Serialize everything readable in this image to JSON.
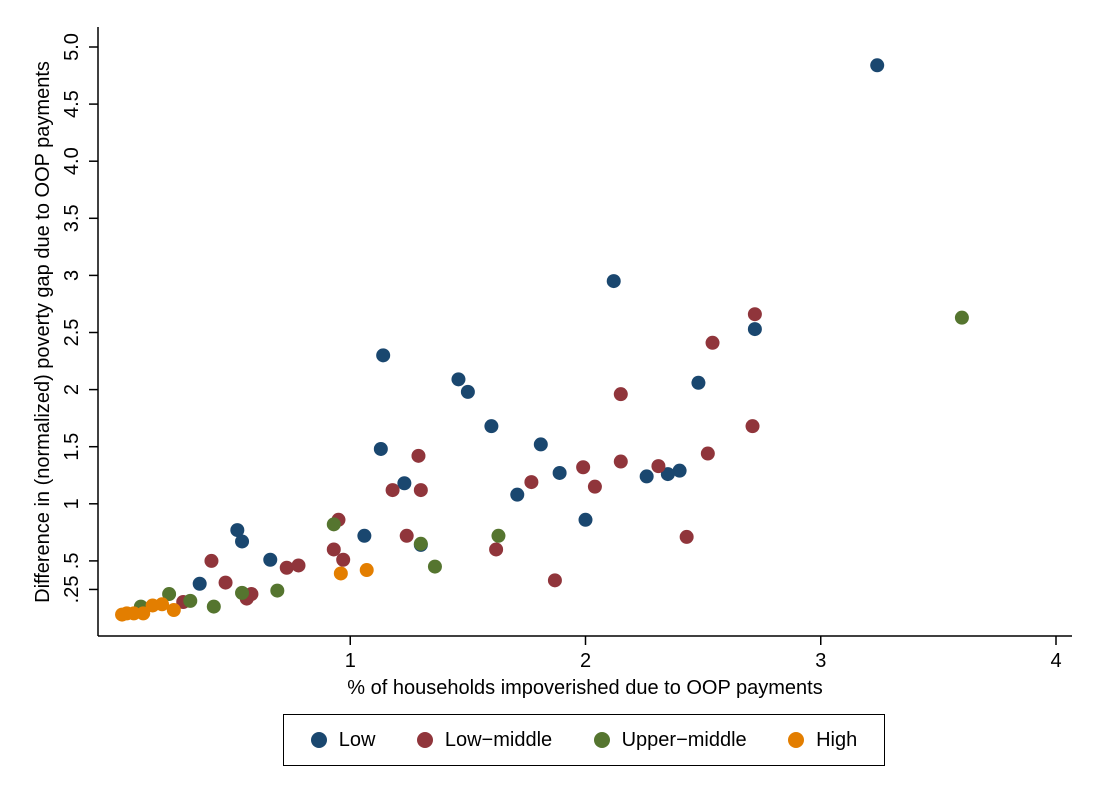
{
  "chart_data": {
    "type": "scatter",
    "xlabel": "% of households impoverished due to OOP payments",
    "ylabel": "Difference in (normalized) poverty gap due to OOP payments",
    "xlim": [
      -0.1,
      4.05
    ],
    "ylim": [
      -0.12,
      5.15
    ],
    "x_ticks": [
      {
        "value": 1,
        "label": "1"
      },
      {
        "value": 2,
        "label": "2"
      },
      {
        "value": 3,
        "label": "3"
      },
      {
        "value": 4,
        "label": "4"
      }
    ],
    "y_ticks": [
      {
        "value": 0.25,
        "label": ".25"
      },
      {
        "value": 0.5,
        "label": ".5"
      },
      {
        "value": 1,
        "label": "1"
      },
      {
        "value": 1.5,
        "label": "1.5"
      },
      {
        "value": 2,
        "label": "2"
      },
      {
        "value": 2.5,
        "label": "2.5"
      },
      {
        "value": 3,
        "label": "3"
      },
      {
        "value": 3.5,
        "label": "3.5"
      },
      {
        "value": 4.0,
        "label": "4.0"
      },
      {
        "value": 4.5,
        "label": "4.5"
      },
      {
        "value": 5.0,
        "label": "5.0"
      }
    ],
    "grid": false,
    "legend_position": "bottom",
    "series": [
      {
        "name": "Low",
        "color": "#1a476f",
        "points": [
          [
            3.24,
            4.84
          ],
          [
            2.12,
            2.95
          ],
          [
            2.72,
            2.53
          ],
          [
            1.14,
            2.3
          ],
          [
            1.46,
            2.09
          ],
          [
            1.5,
            1.98
          ],
          [
            2.48,
            2.06
          ],
          [
            1.6,
            1.68
          ],
          [
            1.81,
            1.52
          ],
          [
            1.13,
            1.48
          ],
          [
            1.89,
            1.27
          ],
          [
            1.23,
            1.18
          ],
          [
            1.71,
            1.08
          ],
          [
            2.26,
            1.24
          ],
          [
            2.35,
            1.26
          ],
          [
            2.4,
            1.29
          ],
          [
            2.0,
            0.86
          ],
          [
            1.06,
            0.72
          ],
          [
            1.3,
            0.64
          ],
          [
            0.52,
            0.77
          ],
          [
            0.54,
            0.67
          ],
          [
            0.66,
            0.51
          ],
          [
            0.36,
            0.3
          ]
        ]
      },
      {
        "name": "Low−middle",
        "color": "#90353b",
        "points": [
          [
            2.72,
            2.66
          ],
          [
            2.54,
            2.41
          ],
          [
            2.15,
            1.96
          ],
          [
            2.71,
            1.68
          ],
          [
            1.29,
            1.42
          ],
          [
            2.15,
            1.37
          ],
          [
            1.99,
            1.32
          ],
          [
            2.31,
            1.33
          ],
          [
            2.52,
            1.44
          ],
          [
            1.77,
            1.19
          ],
          [
            2.04,
            1.15
          ],
          [
            1.18,
            1.12
          ],
          [
            1.3,
            1.12
          ],
          [
            0.95,
            0.86
          ],
          [
            1.24,
            0.72
          ],
          [
            0.93,
            0.6
          ],
          [
            2.43,
            0.71
          ],
          [
            1.62,
            0.6
          ],
          [
            0.97,
            0.51
          ],
          [
            0.41,
            0.5
          ],
          [
            0.73,
            0.44
          ],
          [
            0.78,
            0.46
          ],
          [
            1.87,
            0.33
          ],
          [
            0.47,
            0.31
          ],
          [
            0.58,
            0.21
          ],
          [
            0.56,
            0.17
          ],
          [
            0.29,
            0.14
          ]
        ]
      },
      {
        "name": "Upper−middle",
        "color": "#55752f",
        "points": [
          [
            3.6,
            2.63
          ],
          [
            0.93,
            0.82
          ],
          [
            1.63,
            0.72
          ],
          [
            1.3,
            0.65
          ],
          [
            1.36,
            0.45
          ],
          [
            0.69,
            0.24
          ],
          [
            0.54,
            0.22
          ],
          [
            0.23,
            0.21
          ],
          [
            0.32,
            0.15
          ],
          [
            0.42,
            0.1
          ],
          [
            0.11,
            0.1
          ]
        ]
      },
      {
        "name": "High",
        "color": "#e37e00",
        "points": [
          [
            1.07,
            0.42
          ],
          [
            0.96,
            0.39
          ],
          [
            0.2,
            0.12
          ],
          [
            0.16,
            0.11
          ],
          [
            0.25,
            0.07
          ],
          [
            0.05,
            0.04
          ],
          [
            0.08,
            0.04
          ],
          [
            0.12,
            0.04
          ],
          [
            0.03,
            0.03
          ]
        ]
      }
    ]
  }
}
